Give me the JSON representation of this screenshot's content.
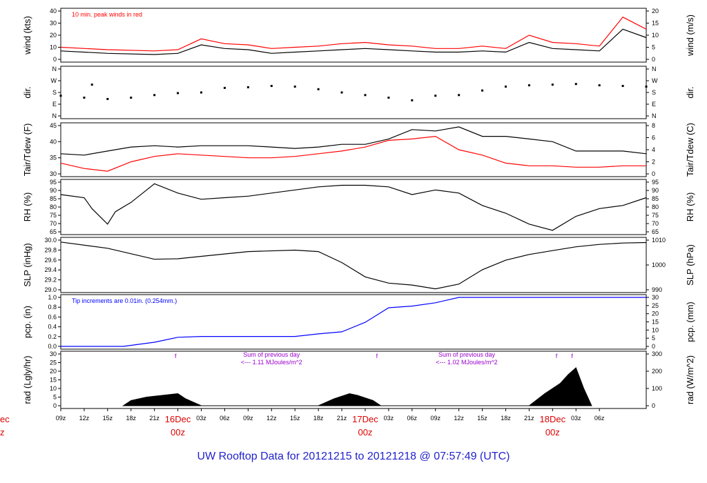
{
  "title": "UW Rooftop Data for 20121215  to  20121218 @ 07:57:49  (UTC)",
  "colors": {
    "black": "#000000",
    "red": "#ff0000",
    "blue": "#0000ff",
    "purple": "#9900cc",
    "title": "#2222cc",
    "date": "#dd0000"
  },
  "chart_data": [
    {
      "type": "line",
      "panel": "wind",
      "ylabel": "wind (kts)",
      "ylabel_right": "wind (m/s)",
      "yticks": [
        "0",
        "10",
        "20",
        "30",
        "40"
      ],
      "yticks_right": [
        "0",
        "5",
        "10",
        "15",
        "20"
      ],
      "ylim": [
        0,
        40
      ],
      "annotation": "10 min. peak winds in red",
      "series": [
        {
          "color": "#000000",
          "x": [
            0,
            6,
            12,
            15,
            18,
            21,
            24,
            27,
            30,
            33,
            36,
            39,
            42,
            45,
            48,
            51,
            54,
            57,
            60,
            63,
            66,
            69,
            72,
            75
          ],
          "values": [
            7,
            5,
            4,
            5,
            12,
            9,
            8,
            5,
            6,
            7,
            8,
            9,
            8,
            7,
            6,
            6,
            7,
            6,
            14,
            9,
            8,
            7,
            25,
            18
          ]
        },
        {
          "color": "#ff0000",
          "x": [
            0,
            6,
            12,
            15,
            18,
            21,
            24,
            27,
            30,
            33,
            36,
            39,
            42,
            45,
            48,
            51,
            54,
            57,
            60,
            63,
            66,
            69,
            72,
            75
          ],
          "values": [
            10,
            8,
            7,
            8,
            17,
            13,
            12,
            9,
            10,
            11,
            13,
            14,
            12,
            11,
            9,
            9,
            11,
            9,
            20,
            14,
            13,
            11,
            35,
            25
          ]
        }
      ]
    },
    {
      "type": "scatter",
      "panel": "dir",
      "ylabel": "dir.",
      "ylabel_right": "dir.",
      "yticks": [
        "N",
        "E",
        "S",
        "W",
        "N"
      ],
      "yticks_right": [
        "N",
        "E",
        "S",
        "W",
        "N"
      ],
      "ylim": [
        0,
        360
      ],
      "series": [
        {
          "color": "#000000",
          "x": [
            0,
            3,
            4,
            6,
            9,
            12,
            15,
            18,
            21,
            24,
            27,
            30,
            33,
            36,
            39,
            42,
            45,
            48,
            51,
            54,
            57,
            60,
            63,
            66,
            69,
            72,
            75
          ],
          "values": [
            155,
            140,
            240,
            130,
            140,
            160,
            175,
            180,
            215,
            220,
            230,
            225,
            205,
            180,
            160,
            140,
            120,
            155,
            160,
            195,
            225,
            235,
            240,
            245,
            235,
            230,
            225
          ]
        }
      ]
    },
    {
      "type": "line",
      "panel": "temp",
      "ylabel": "Tair/Tdew (F)",
      "ylabel_right": "Tair/Tdew (C)",
      "yticks": [
        "30",
        "35",
        "40",
        "45"
      ],
      "yticks_right": [
        "0",
        "2",
        "4",
        "6",
        "8"
      ],
      "ylim": [
        30,
        48
      ],
      "series": [
        {
          "name": "Tair",
          "color": "#000000",
          "x": [
            0,
            3,
            6,
            9,
            12,
            15,
            18,
            21,
            24,
            27,
            30,
            33,
            36,
            39,
            42,
            45,
            48,
            51,
            54,
            57,
            60,
            63,
            66,
            69,
            72,
            75
          ],
          "values": [
            37.5,
            37,
            38.5,
            40,
            40.5,
            40,
            40.5,
            40.5,
            40.5,
            40,
            39.5,
            40,
            41,
            41,
            43,
            46.5,
            46,
            47.5,
            44,
            44,
            43,
            42,
            38.5,
            38.5,
            38.5,
            37.5
          ]
        },
        {
          "name": "Tdew",
          "color": "#ff0000",
          "x": [
            0,
            3,
            6,
            9,
            12,
            15,
            18,
            21,
            24,
            27,
            30,
            33,
            36,
            39,
            42,
            45,
            48,
            51,
            54,
            57,
            60,
            63,
            66,
            69,
            72,
            75
          ],
          "values": [
            34,
            32,
            31,
            34.5,
            36.5,
            37.5,
            37,
            36.5,
            36,
            36,
            36.5,
            37.5,
            38.5,
            40,
            42.5,
            43,
            44,
            39,
            37,
            34,
            33,
            33,
            32.5,
            32.5,
            33,
            33
          ]
        }
      ]
    },
    {
      "type": "line",
      "panel": "rh",
      "ylabel": "RH (%)",
      "ylabel_right": "RH (%)",
      "yticks": [
        "65",
        "70",
        "75",
        "80",
        "85",
        "90",
        "95"
      ],
      "yticks_right": [
        "65",
        "70",
        "75",
        "80",
        "85",
        "90",
        "95"
      ],
      "ylim": [
        63,
        95
      ],
      "series": [
        {
          "color": "#000000",
          "x": [
            0,
            3,
            4,
            6,
            7,
            9,
            12,
            15,
            18,
            21,
            24,
            27,
            30,
            33,
            36,
            39,
            42,
            45,
            48,
            51,
            54,
            57,
            60,
            63,
            66,
            69,
            72,
            75
          ],
          "values": [
            87,
            85,
            78,
            68,
            76,
            82,
            94,
            88,
            84,
            85,
            86,
            88,
            90,
            92,
            93,
            93,
            92,
            87,
            90,
            88,
            80,
            75,
            68,
            64,
            73,
            78,
            80,
            85
          ]
        }
      ]
    },
    {
      "type": "line",
      "panel": "slp",
      "ylabel": "SLP (inHg)",
      "ylabel_right": "SLP (hPa)",
      "yticks": [
        "29.0",
        "29.2",
        "29.4",
        "29.6",
        "29.8",
        "30.0"
      ],
      "yticks_right": [
        "990",
        "1000",
        "1010"
      ],
      "ylim": [
        28.98,
        30.02
      ],
      "series": [
        {
          "color": "#000000",
          "x": [
            0,
            6,
            12,
            15,
            18,
            24,
            30,
            33,
            36,
            39,
            42,
            45,
            48,
            51,
            54,
            57,
            60,
            63,
            66,
            69,
            72,
            75
          ],
          "values": [
            29.98,
            29.85,
            29.62,
            29.63,
            29.68,
            29.78,
            29.81,
            29.78,
            29.55,
            29.25,
            29.12,
            29.08,
            29.0,
            29.1,
            29.4,
            29.6,
            29.72,
            29.8,
            29.88,
            29.93,
            29.96,
            29.97
          ]
        }
      ]
    },
    {
      "type": "line",
      "panel": "pcp",
      "ylabel": "pcp. (in)",
      "ylabel_right": "pcp. (mm)",
      "yticks": [
        "0.0",
        "0.2",
        "0.4",
        "0.6",
        "0.8",
        "1.0"
      ],
      "yticks_right": [
        "0",
        "5",
        "10",
        "15",
        "20",
        "25",
        "30"
      ],
      "ylim": [
        0,
        1.18
      ],
      "annotation": "Tip increments are 0.01in. (0.254mm.)",
      "series": [
        {
          "color": "#0000ff",
          "x": [
            0,
            8,
            12,
            15,
            18,
            30,
            33,
            36,
            39,
            42,
            45,
            48,
            51,
            54,
            75
          ],
          "values": [
            0,
            0,
            0.1,
            0.22,
            0.24,
            0.24,
            0.3,
            0.35,
            0.58,
            0.93,
            0.97,
            1.05,
            1.18,
            1.18,
            1.18
          ]
        }
      ]
    },
    {
      "type": "area",
      "panel": "rad",
      "ylabel": "rad (Lgly/hr)",
      "ylabel_right": "rad (W/m^2)",
      "yticks": [
        "0",
        "5",
        "10",
        "15",
        "20",
        "25",
        "30"
      ],
      "yticks_right": [
        "0",
        "100",
        "200",
        "300"
      ],
      "ylim": [
        0,
        30
      ],
      "annotations": [
        {
          "x": 14.7,
          "label": "f"
        },
        {
          "x": 40.5,
          "label": "f"
        },
        {
          "x": 63.5,
          "label": "f"
        },
        {
          "x": 65.5,
          "label": "f"
        }
      ],
      "daily_sums": [
        {
          "x": 27,
          "line1": "Sum of previous day",
          "line2": "<--- 1.11 MJoules/m^2"
        },
        {
          "x": 52,
          "line1": "Sum of previous day",
          "line2": "<--- 1.02 MJoules/m^2"
        }
      ],
      "series": [
        {
          "color": "#000000",
          "x": [
            8,
            9,
            11,
            13,
            15,
            16,
            18,
            33,
            35,
            37,
            38,
            40,
            41,
            60,
            62,
            64,
            65,
            66,
            67,
            68
          ],
          "values": [
            0,
            3,
            5,
            6,
            7,
            4,
            0,
            0,
            4,
            7,
            6,
            3,
            0,
            0,
            7,
            13,
            18,
            22,
            10,
            0
          ]
        }
      ]
    }
  ],
  "x_axis": {
    "ticks": [
      "09z",
      "12z",
      "15z",
      "18z",
      "21z",
      "03z",
      "06z",
      "09z",
      "12z",
      "15z",
      "18z",
      "21z",
      "03z",
      "06z",
      "09z",
      "12z",
      "15z",
      "18z",
      "21z",
      "03z",
      "06z"
    ],
    "tick_hours": [
      0,
      3,
      6,
      9,
      12,
      18,
      21,
      24,
      27,
      30,
      33,
      36,
      42,
      45,
      48,
      51,
      54,
      57,
      60,
      66,
      69
    ],
    "day_labels": [
      {
        "hour": 15,
        "line1": "16Dec",
        "line2": "00z"
      },
      {
        "hour": 39,
        "line1": "17Dec",
        "line2": "00z"
      },
      {
        "hour": 63,
        "line1": "18Dec",
        "line2": "00z"
      }
    ],
    "left_edge_label": {
      "line1": "ec",
      "line2": "z"
    }
  }
}
